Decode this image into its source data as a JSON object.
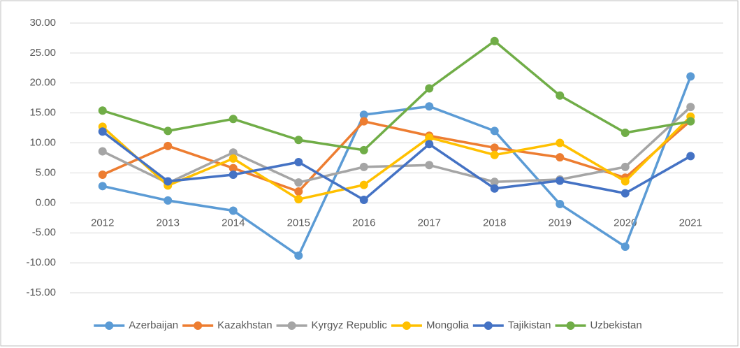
{
  "chart_data": {
    "type": "line",
    "categories": [
      "2012",
      "2013",
      "2014",
      "2015",
      "2016",
      "2017",
      "2018",
      "2019",
      "2020",
      "2021"
    ],
    "series": [
      {
        "name": "Azerbaijan",
        "color": "#5b9bd5",
        "values": [
          2.8,
          0.4,
          -1.3,
          -8.8,
          14.7,
          16.1,
          12.0,
          -0.2,
          -7.3,
          21.1
        ]
      },
      {
        "name": "Kazakhstan",
        "color": "#ed7d31",
        "values": [
          4.7,
          9.5,
          5.8,
          1.9,
          13.6,
          11.2,
          9.2,
          7.6,
          4.2,
          13.7
        ]
      },
      {
        "name": "Kyrgyz Republic",
        "color": "#a5a5a5",
        "values": [
          8.6,
          3.3,
          8.4,
          3.4,
          6.0,
          6.3,
          3.5,
          3.9,
          6.0,
          16.0
        ]
      },
      {
        "name": "Mongolia",
        "color": "#ffc000",
        "values": [
          12.7,
          2.9,
          7.4,
          0.6,
          3.0,
          10.9,
          8.0,
          10.0,
          3.6,
          14.4
        ]
      },
      {
        "name": "Tajikistan",
        "color": "#4472c4",
        "values": [
          11.9,
          3.6,
          4.7,
          6.8,
          0.5,
          9.8,
          2.4,
          3.7,
          1.6,
          7.8
        ]
      },
      {
        "name": "Uzbekistan",
        "color": "#70ad47",
        "values": [
          15.4,
          12.0,
          14.0,
          10.5,
          8.8,
          19.1,
          27.0,
          17.9,
          11.7,
          13.6
        ]
      }
    ],
    "ylim": [
      -15,
      30
    ],
    "yticks": [
      {
        "value": -15,
        "label": "-15.00"
      },
      {
        "value": -10,
        "label": "-10.00"
      },
      {
        "value": -5,
        "label": "-5.00"
      },
      {
        "value": 0,
        "label": "0.00"
      },
      {
        "value": 5,
        "label": "5.00"
      },
      {
        "value": 10,
        "label": "10.00"
      },
      {
        "value": 15,
        "label": "15.00"
      },
      {
        "value": 20,
        "label": "20.00"
      },
      {
        "value": 25,
        "label": "25.00"
      },
      {
        "value": 30,
        "label": "30.00"
      }
    ],
    "grid": true,
    "legend": "bottom"
  }
}
